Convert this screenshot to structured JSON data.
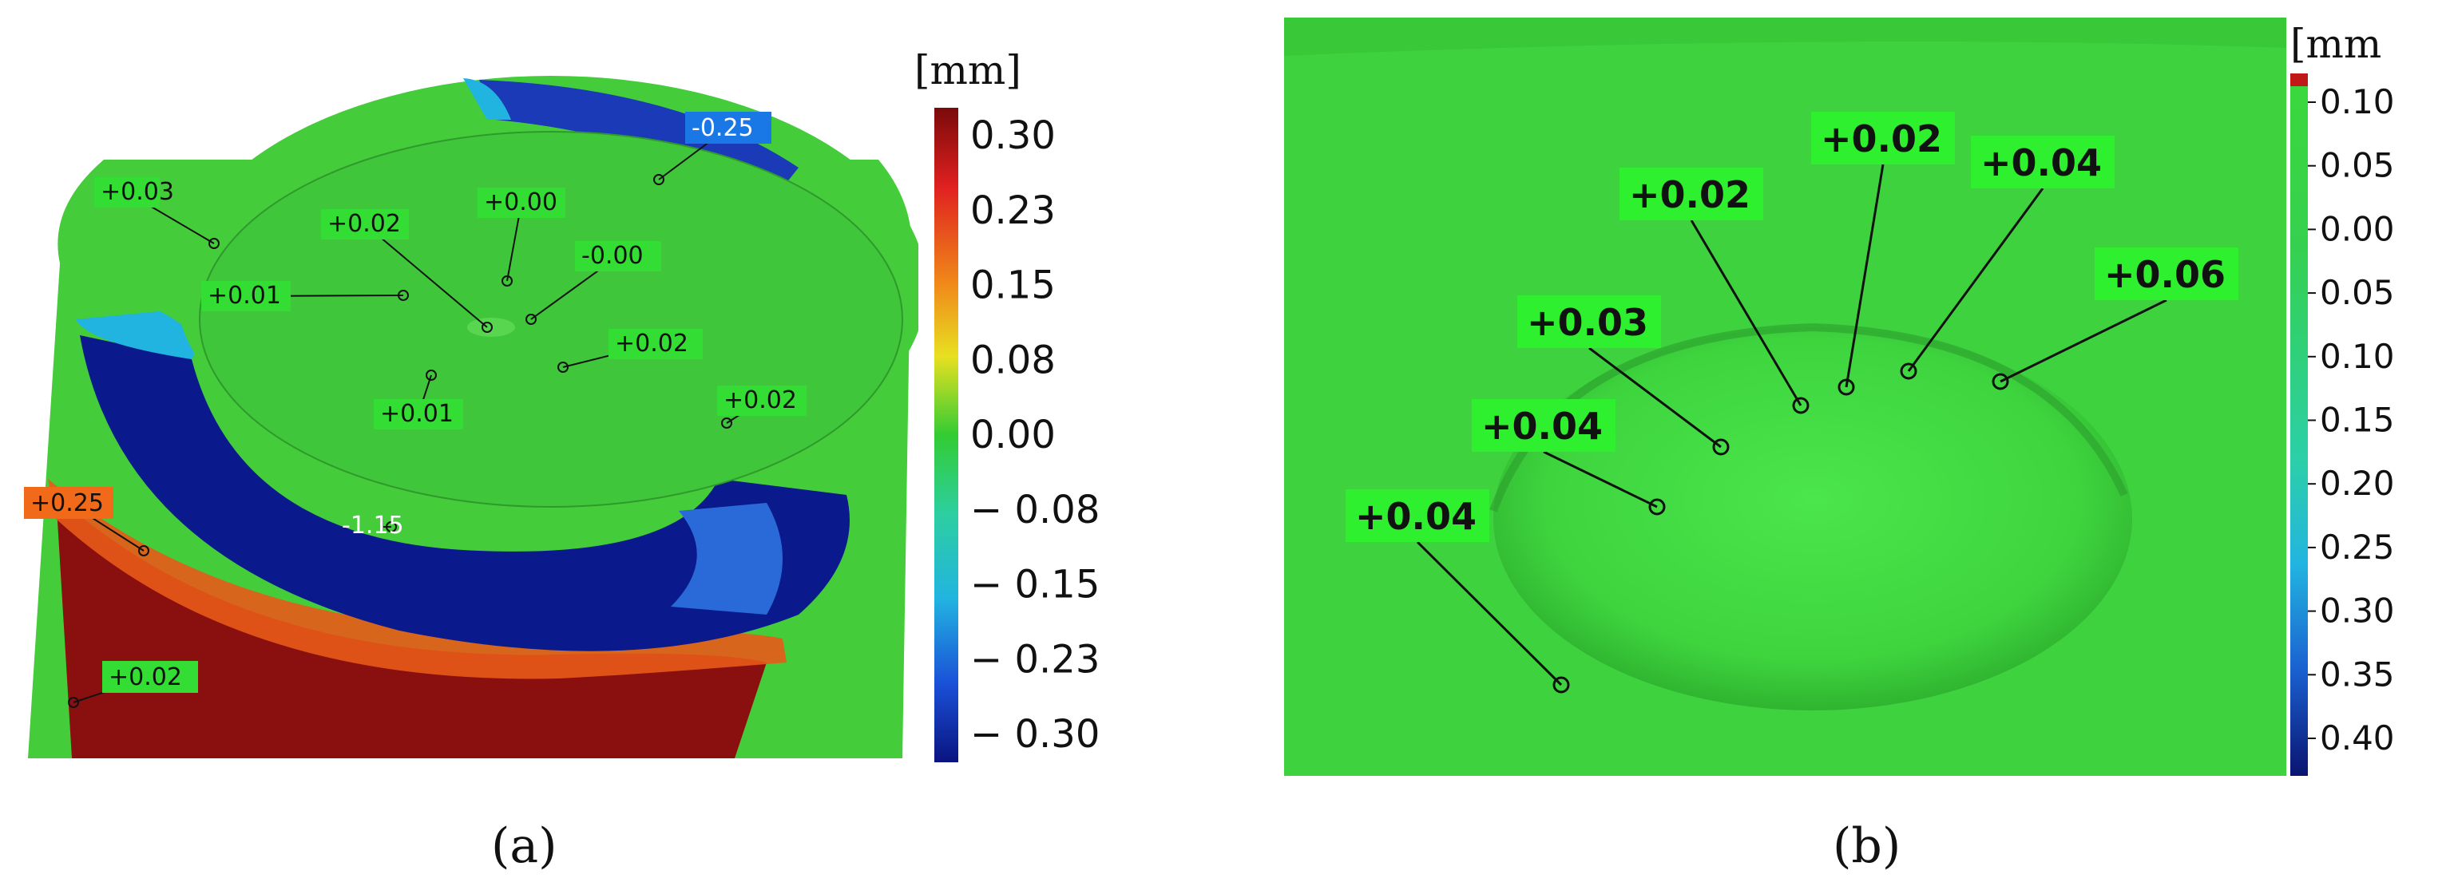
{
  "panel_a": {
    "caption": "(a)",
    "legend": {
      "unit": "[mm]",
      "ticks": [
        "0.30",
        "0.23",
        "0.15",
        "0.08",
        "0.00",
        "− 0.08",
        "− 0.15",
        "− 0.23",
        "− 0.30"
      ]
    },
    "callouts": [
      "+0.03",
      "+0.02",
      "+0.00",
      "-0.25",
      "+0.01",
      "-0.00",
      "+0.02",
      "+0.01",
      "+0.02",
      "+0.25",
      "-1.15",
      "+0.02"
    ]
  },
  "panel_b": {
    "caption": "(b)",
    "legend": {
      "unit": "[mm",
      "ticks": [
        "0.10",
        "0.05",
        "0.00",
        "0.05",
        "0.10",
        "0.15",
        "0.20",
        "0.25",
        "0.30",
        "0.35",
        "0.40"
      ]
    },
    "callouts": [
      "+0.02",
      "+0.02",
      "+0.04",
      "+0.03",
      "+0.06",
      "+0.04",
      "+0.04"
    ]
  },
  "colors": {
    "positive_high": "#8a0f0f",
    "positive_mid": "#f07a1a",
    "zero": "#33cc33",
    "negative_mid": "#22b4e0",
    "negative_high": "#0a1a8c",
    "surface_b": "#3fd23f"
  }
}
